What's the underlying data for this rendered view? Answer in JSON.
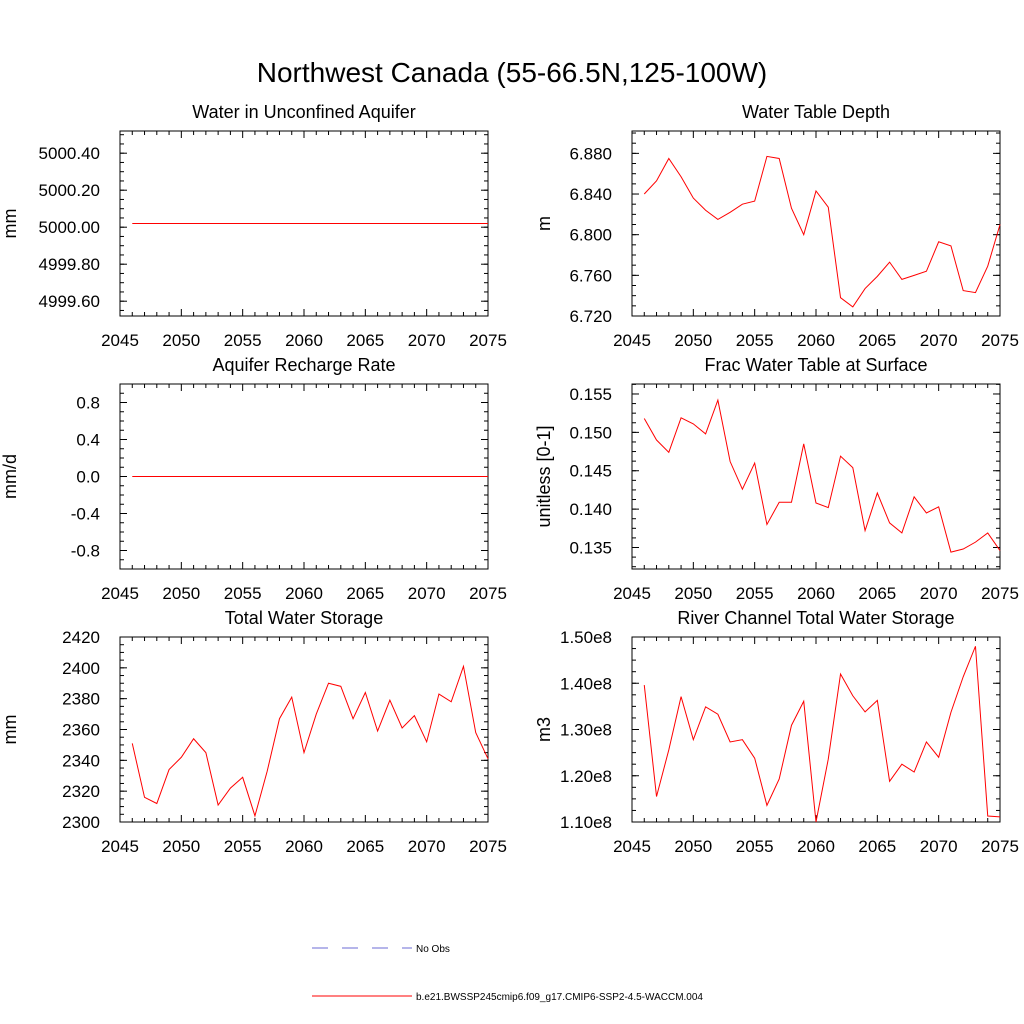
{
  "title": "Northwest Canada (55-66.5N,125-100W)",
  "legend": {
    "no_obs_label": "No Obs",
    "no_obs_color": "#6b6bd6",
    "model_label": "b.e21.BWSSP245cmip6.f09_g17.CMIP6-SSP2-4.5-WACCM.004",
    "model_color": "#ff0000"
  },
  "chart_data": [
    {
      "id": "aquifer-water",
      "type": "line",
      "title": "Water in Unconfined Aquifer",
      "ylabel": "mm",
      "xlim": [
        2045,
        2075
      ],
      "ylim": [
        4999.52,
        5000.52
      ],
      "xticks": [
        2045,
        2050,
        2055,
        2060,
        2065,
        2070,
        2075
      ],
      "yticks": [
        4999.6,
        4999.8,
        5000.0,
        5000.2,
        5000.4
      ],
      "ytick_labels": [
        "4999.60",
        "4999.80",
        "5000.00",
        "5000.20",
        "5000.40"
      ],
      "series": [
        {
          "x_start": 2046,
          "values": [
            5000.02,
            5000.02,
            5000.02,
            5000.02,
            5000.02,
            5000.02,
            5000.02,
            5000.02,
            5000.02,
            5000.02,
            5000.02,
            5000.02,
            5000.02,
            5000.02,
            5000.02,
            5000.02,
            5000.02,
            5000.02,
            5000.02,
            5000.02,
            5000.02,
            5000.02,
            5000.02,
            5000.02,
            5000.02,
            5000.02,
            5000.02,
            5000.02,
            5000.02,
            5000.02
          ]
        }
      ]
    },
    {
      "id": "water-table-depth",
      "type": "line",
      "title": "Water Table Depth",
      "ylabel": "m",
      "xlim": [
        2045,
        2075
      ],
      "ylim": [
        6.72,
        6.902
      ],
      "xticks": [
        2045,
        2050,
        2055,
        2060,
        2065,
        2070,
        2075
      ],
      "yticks": [
        6.72,
        6.76,
        6.8,
        6.84,
        6.88
      ],
      "ytick_labels": [
        "6.720",
        "6.760",
        "6.800",
        "6.840",
        "6.880"
      ],
      "series": [
        {
          "x_start": 2046,
          "values": [
            6.84,
            6.853,
            6.875,
            6.857,
            6.836,
            6.824,
            6.815,
            6.822,
            6.83,
            6.833,
            6.877,
            6.875,
            6.826,
            6.8,
            6.843,
            6.827,
            6.738,
            6.729,
            6.747,
            6.759,
            6.773,
            6.756,
            6.76,
            6.764,
            6.793,
            6.789,
            6.745,
            6.743,
            6.769,
            6.81
          ]
        }
      ]
    },
    {
      "id": "aquifer-recharge",
      "type": "line",
      "title": "Aquifer Recharge Rate",
      "ylabel": "mm/d",
      "xlim": [
        2045,
        2075
      ],
      "ylim": [
        -1.0,
        1.0
      ],
      "xticks": [
        2045,
        2050,
        2055,
        2060,
        2065,
        2070,
        2075
      ],
      "yticks": [
        -0.8,
        -0.4,
        0.0,
        0.4,
        0.8
      ],
      "ytick_labels": [
        "-0.8",
        "-0.4",
        "0.0",
        "0.4",
        "0.8"
      ],
      "series": [
        {
          "x_start": 2046,
          "values": [
            0,
            0,
            0,
            0,
            0,
            0,
            0,
            0,
            0,
            0,
            0,
            0,
            0,
            0,
            0,
            0,
            0,
            0,
            0,
            0,
            0,
            0,
            0,
            0,
            0,
            0,
            0,
            0,
            0,
            0
          ]
        }
      ]
    },
    {
      "id": "frac-water-table",
      "type": "line",
      "title": "Frac Water Table at Surface",
      "ylabel": "unitless [0-1]",
      "xlim": [
        2045,
        2075
      ],
      "ylim": [
        0.1322,
        0.1563
      ],
      "xticks": [
        2045,
        2050,
        2055,
        2060,
        2065,
        2070,
        2075
      ],
      "yticks": [
        0.135,
        0.14,
        0.145,
        0.15,
        0.155
      ],
      "ytick_labels": [
        "0.135",
        "0.140",
        "0.145",
        "0.150",
        "0.155"
      ],
      "series": [
        {
          "x_start": 2046,
          "values": [
            0.1518,
            0.149,
            0.1474,
            0.1519,
            0.1511,
            0.1498,
            0.1542,
            0.1462,
            0.1426,
            0.146,
            0.138,
            0.1409,
            0.1409,
            0.1485,
            0.1408,
            0.1402,
            0.1469,
            0.1454,
            0.1372,
            0.1421,
            0.1382,
            0.1369,
            0.1416,
            0.1395,
            0.1403,
            0.1344,
            0.1348,
            0.1357,
            0.1369,
            0.1346
          ]
        }
      ]
    },
    {
      "id": "total-water-storage",
      "type": "line",
      "title": "Total Water Storage",
      "ylabel": "mm",
      "xlim": [
        2045,
        2075
      ],
      "ylim": [
        2300,
        2420
      ],
      "xticks": [
        2045,
        2050,
        2055,
        2060,
        2065,
        2070,
        2075
      ],
      "yticks": [
        2300,
        2320,
        2340,
        2360,
        2380,
        2400,
        2420
      ],
      "ytick_labels": [
        "2300",
        "2320",
        "2340",
        "2360",
        "2380",
        "2400",
        "2420"
      ],
      "series": [
        {
          "x_start": 2046,
          "values": [
            2351,
            2316,
            2312,
            2334,
            2342,
            2354,
            2345,
            2311,
            2322,
            2329,
            2304,
            2333,
            2367,
            2381,
            2345,
            2370,
            2390,
            2388,
            2367,
            2384,
            2359,
            2379,
            2361,
            2369,
            2352,
            2383,
            2378,
            2401,
            2358,
            2341
          ]
        }
      ]
    },
    {
      "id": "river-channel-storage",
      "type": "line",
      "title": "River Channel Total Water Storage",
      "ylabel": "m3",
      "xlim": [
        2045,
        2075
      ],
      "ylim": [
        110000000,
        150000000
      ],
      "xticks": [
        2045,
        2050,
        2055,
        2060,
        2065,
        2070,
        2075
      ],
      "yticks": [
        110000000,
        120000000,
        130000000,
        140000000,
        150000000
      ],
      "ytick_labels": [
        "1.10e8",
        "1.20e8",
        "1.30e8",
        "1.40e8",
        "1.50e8"
      ],
      "series": [
        {
          "x_start": 2046,
          "values": [
            139600000,
            115500000,
            125600000,
            137100000,
            127800000,
            134900000,
            133300000,
            127300000,
            127800000,
            123800000,
            113600000,
            119300000,
            130900000,
            136100000,
            110000000,
            123600000,
            142000000,
            137300000,
            133800000,
            136300000,
            118800000,
            122500000,
            120800000,
            127300000,
            124000000,
            133700000,
            141400000,
            148000000,
            111300000,
            111100000
          ]
        }
      ]
    }
  ]
}
